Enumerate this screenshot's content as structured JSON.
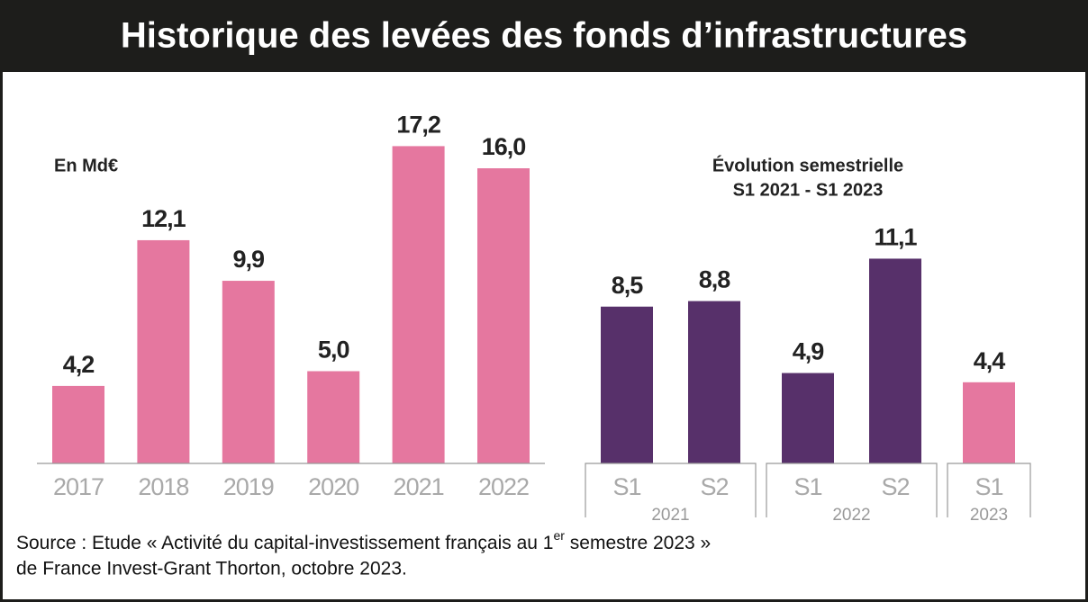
{
  "title": "Historique des levées des fonds d’infrastructures",
  "source": {
    "lines": [
      [
        "Source : Etude « Activité du capital-investissement français au 1",
        "er",
        " semestre 2023 »"
      ],
      [
        "de France Invest-Grant Thorton, octobre 2023."
      ]
    ]
  },
  "chart_data": [
    {
      "type": "bar",
      "subtitle": "En Md€",
      "categories": [
        "2017",
        "2018",
        "2019",
        "2020",
        "2021",
        "2022"
      ],
      "values": [
        4.2,
        12.1,
        9.9,
        5.0,
        17.2,
        16.0
      ],
      "value_labels": [
        "4,2",
        "12,1",
        "9,9",
        "5,0",
        "17,2",
        "16,0"
      ],
      "color": "#e5779f"
    },
    {
      "type": "bar",
      "subtitle": [
        "Évolution semestrielle",
        "S1 2021 - S1 2023"
      ],
      "categories": [
        "S1",
        "S2",
        "S1",
        "S2",
        "S1"
      ],
      "groups": [
        {
          "label": "2021",
          "size": 2
        },
        {
          "label": "2022",
          "size": 2
        },
        {
          "label": "2023",
          "size": 1
        }
      ],
      "values": [
        8.5,
        8.8,
        4.9,
        11.1,
        4.4
      ],
      "value_labels": [
        "8,5",
        "8,8",
        "4,9",
        "11,1",
        "4,4"
      ],
      "colors": [
        "#57306a",
        "#57306a",
        "#57306a",
        "#57306a",
        "#e5779f"
      ]
    }
  ]
}
